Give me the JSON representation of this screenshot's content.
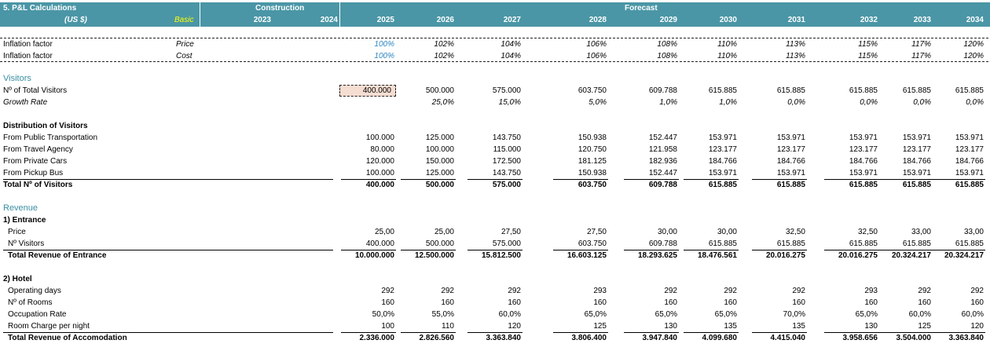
{
  "header": {
    "title": "5. P&L Calculations",
    "currency": "(US $)",
    "scenario": "Basic",
    "construction_label": "Construction",
    "forecast_label": "Forecast",
    "years": [
      "2023",
      "2024",
      "2025",
      "2026",
      "2027",
      "2028",
      "2029",
      "2030",
      "2031",
      "2032",
      "2033",
      "2034"
    ]
  },
  "inflation": [
    {
      "label": "Inflation factor",
      "sub": "Price",
      "values": [
        "100%",
        "102%",
        "104%",
        "106%",
        "108%",
        "110%",
        "113%",
        "115%",
        "117%",
        "120%"
      ]
    },
    {
      "label": "Inflation factor",
      "sub": "Cost",
      "values": [
        "100%",
        "102%",
        "104%",
        "106%",
        "108%",
        "110%",
        "113%",
        "115%",
        "117%",
        "120%"
      ]
    }
  ],
  "visitors": {
    "section_title": "Visitors",
    "total_label": "Nº of Total Visitors",
    "total_values": [
      "400.000",
      "500.000",
      "575.000",
      "603.750",
      "609.788",
      "615.885",
      "615.885",
      "615.885",
      "615.885",
      "615.885"
    ],
    "growth_label": "Growth Rate",
    "growth_values": [
      "",
      "25,0%",
      "15,0%",
      "5,0%",
      "1,0%",
      "1,0%",
      "0,0%",
      "0,0%",
      "0,0%",
      "0,0%"
    ]
  },
  "distribution": {
    "title": "Distribution of Visitors",
    "rows": [
      {
        "label": "From Public Transportation",
        "values": [
          "100.000",
          "125.000",
          "143.750",
          "150.938",
          "152.447",
          "153.971",
          "153.971",
          "153.971",
          "153.971",
          "153.971"
        ]
      },
      {
        "label": "From Travel Agency",
        "values": [
          "80.000",
          "100.000",
          "115.000",
          "120.750",
          "121.958",
          "123.177",
          "123.177",
          "123.177",
          "123.177",
          "123.177"
        ]
      },
      {
        "label": "From Private Cars",
        "values": [
          "120.000",
          "150.000",
          "172.500",
          "181.125",
          "182.936",
          "184.766",
          "184.766",
          "184.766",
          "184.766",
          "184.766"
        ]
      },
      {
        "label": "From Pickup Bus",
        "values": [
          "100.000",
          "125.000",
          "143.750",
          "150.938",
          "152.447",
          "153.971",
          "153.971",
          "153.971",
          "153.971",
          "153.971"
        ]
      }
    ],
    "total_label": "Total Nº of Visitors",
    "total_values": [
      "400.000",
      "500.000",
      "575.000",
      "603.750",
      "609.788",
      "615.885",
      "615.885",
      "615.885",
      "615.885",
      "615.885"
    ]
  },
  "revenue": {
    "section_title": "Revenue",
    "entrance": {
      "title": "1) Entrance",
      "rows": [
        {
          "label": "Price",
          "values": [
            "25,00",
            "25,00",
            "27,50",
            "27,50",
            "30,00",
            "30,00",
            "32,50",
            "32,50",
            "33,00",
            "33,00"
          ]
        },
        {
          "label": "Nº Visitors",
          "values": [
            "400.000",
            "500.000",
            "575.000",
            "603.750",
            "609.788",
            "615.885",
            "615.885",
            "615.885",
            "615.885",
            "615.885"
          ]
        }
      ],
      "total_label": "Total Revenue of Entrance",
      "total_values": [
        "10.000.000",
        "12.500.000",
        "15.812.500",
        "16.603.125",
        "18.293.625",
        "18.476.561",
        "20.016.275",
        "20.016.275",
        "20.324.217",
        "20.324.217"
      ]
    },
    "hotel": {
      "title": "2) Hotel",
      "rows": [
        {
          "label": "Operating days",
          "values": [
            "292",
            "292",
            "292",
            "293",
            "292",
            "292",
            "292",
            "293",
            "292",
            "292"
          ]
        },
        {
          "label": "Nº of Rooms",
          "values": [
            "160",
            "160",
            "160",
            "160",
            "160",
            "160",
            "160",
            "160",
            "160",
            "160"
          ]
        },
        {
          "label": "Occupation Rate",
          "values": [
            "50,0%",
            "55,0%",
            "60,0%",
            "65,0%",
            "65,0%",
            "65,0%",
            "70,0%",
            "65,0%",
            "60,0%",
            "60,0%"
          ]
        },
        {
          "label": "Room Charge per night",
          "values": [
            "100",
            "110",
            "120",
            "125",
            "130",
            "135",
            "135",
            "130",
            "125",
            "120"
          ]
        }
      ],
      "total_label": "Total Revenue of Accomodation",
      "total_values": [
        "2.336.000",
        "2.826.560",
        "3.363.840",
        "3.806.400",
        "3.947.840",
        "4.099.680",
        "4.415.040",
        "3.958.656",
        "3.504.000",
        "3.363.840"
      ]
    }
  }
}
